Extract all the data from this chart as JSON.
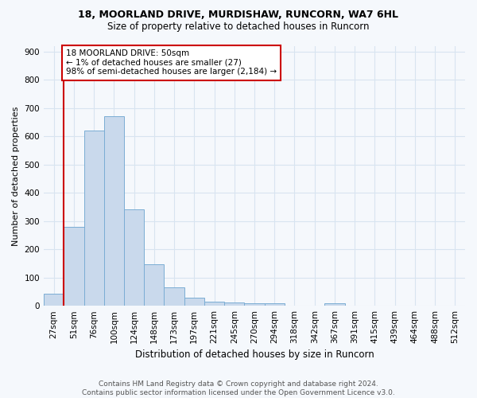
{
  "title1": "18, MOORLAND DRIVE, MURDISHAW, RUNCORN, WA7 6HL",
  "title2": "Size of property relative to detached houses in Runcorn",
  "xlabel": "Distribution of detached houses by size in Runcorn",
  "ylabel": "Number of detached properties",
  "categories": [
    "27sqm",
    "51sqm",
    "76sqm",
    "100sqm",
    "124sqm",
    "148sqm",
    "173sqm",
    "197sqm",
    "221sqm",
    "245sqm",
    "270sqm",
    "294sqm",
    "318sqm",
    "342sqm",
    "367sqm",
    "391sqm",
    "415sqm",
    "439sqm",
    "464sqm",
    "488sqm",
    "512sqm"
  ],
  "values": [
    42,
    280,
    620,
    670,
    340,
    148,
    65,
    30,
    15,
    12,
    10,
    10,
    0,
    0,
    8,
    0,
    0,
    0,
    0,
    0,
    0
  ],
  "bar_color": "#c9d9ec",
  "bar_edge_color": "#7aadd4",
  "grid_color": "#d8e4f0",
  "property_line_color": "#cc0000",
  "property_line_index": 1,
  "annotation_text": "18 MOORLAND DRIVE: 50sqm\n← 1% of detached houses are smaller (27)\n98% of semi-detached houses are larger (2,184) →",
  "annotation_box_facecolor": "#ffffff",
  "annotation_box_edgecolor": "#cc0000",
  "footer": "Contains HM Land Registry data © Crown copyright and database right 2024.\nContains public sector information licensed under the Open Government Licence v3.0.",
  "ylim": [
    0,
    920
  ],
  "yticks": [
    0,
    100,
    200,
    300,
    400,
    500,
    600,
    700,
    800,
    900
  ],
  "bg_color": "#f5f8fc",
  "title1_fontsize": 9,
  "title2_fontsize": 8.5,
  "xlabel_fontsize": 8.5,
  "ylabel_fontsize": 8,
  "tick_fontsize": 7.5,
  "footer_fontsize": 6.5,
  "footer_color": "#555555"
}
